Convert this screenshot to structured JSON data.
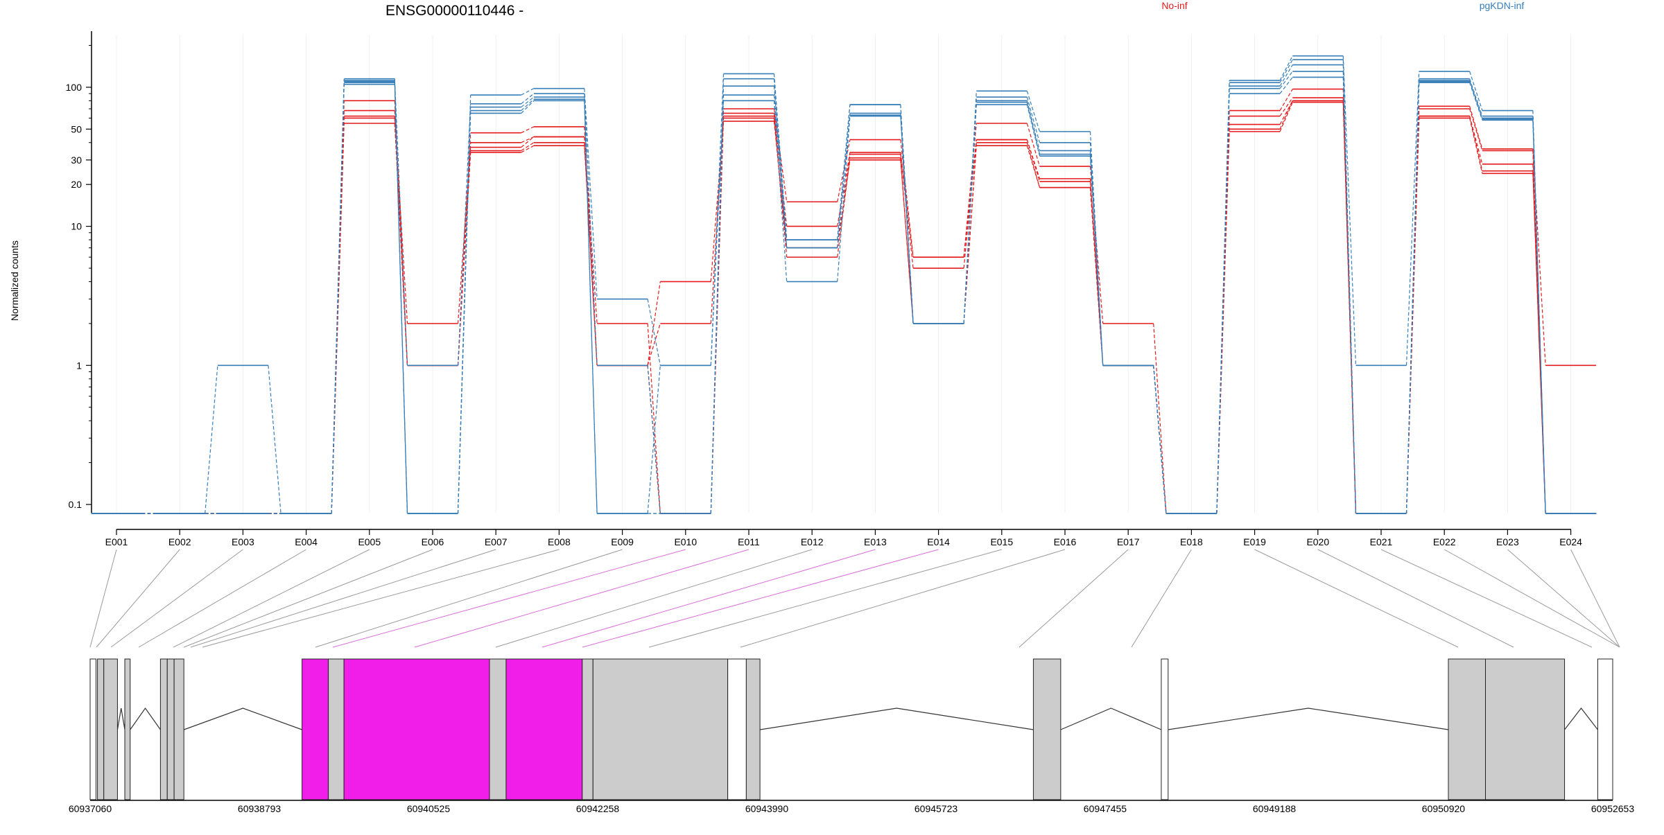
{
  "title": "ENSG00000110446 -",
  "legend": [
    {
      "label": "No-inf",
      "color": "#e41a1c"
    },
    {
      "label": "pgKDN-inf",
      "color": "#377eb8"
    }
  ],
  "ylabel": "Normalized counts",
  "colors": {
    "red": "#e41a1c",
    "blue": "#377eb8",
    "highlight": "#f01ee8",
    "exon_fill": "#cccccc",
    "line": "#777777"
  },
  "chart_data": {
    "type": "line",
    "title": "ENSG00000110446 -",
    "ylabel": "Normalized counts",
    "y_scale": "log",
    "y_ticks": [
      0.1,
      1,
      10,
      20,
      30,
      50,
      100
    ],
    "categories": [
      "E001",
      "E002",
      "E003",
      "E004",
      "E005",
      "E006",
      "E007",
      "E008",
      "E009",
      "E010",
      "E011",
      "E012",
      "E013",
      "E014",
      "E015",
      "E016",
      "E017",
      "E018",
      "E019",
      "E020",
      "E021",
      "E022",
      "E023",
      "E024"
    ],
    "series": [
      {
        "group": "No-inf",
        "values": [
          0.08,
          0.08,
          0.08,
          0.08,
          80,
          1,
          47,
          52,
          1,
          0.08,
          70,
          15,
          42,
          6,
          55,
          27,
          2,
          0.08,
          68,
          97,
          0.08,
          73,
          36,
          1
        ]
      },
      {
        "group": "No-inf",
        "values": [
          0.08,
          0.08,
          0.08,
          0.08,
          68,
          1,
          40,
          44,
          1,
          0.08,
          65,
          10,
          34,
          6,
          42,
          22,
          1,
          0.08,
          62,
          84,
          0.08,
          70,
          35,
          0.08
        ]
      },
      {
        "group": "No-inf",
        "values": [
          0.08,
          0.08,
          0.08,
          0.08,
          62,
          2,
          37,
          44,
          2,
          0.08,
          60,
          7,
          33,
          5,
          42,
          21,
          1,
          0.08,
          54,
          80,
          0.08,
          62,
          28,
          0.08
        ]
      },
      {
        "group": "No-inf",
        "values": [
          0.08,
          0.08,
          0.08,
          0.08,
          55,
          1,
          34,
          38,
          1,
          4,
          57,
          7,
          30,
          2,
          38,
          19,
          1,
          0.08,
          48,
          78,
          0.08,
          60,
          24,
          0.08
        ]
      },
      {
        "group": "No-inf",
        "values": [
          0.08,
          0.08,
          0.08,
          0.08,
          60,
          1,
          35,
          40,
          1,
          2,
          62,
          6,
          31,
          2,
          40,
          19,
          1,
          0.08,
          50,
          80,
          0.08,
          62,
          25,
          0.08
        ]
      },
      {
        "group": "pgKDN-inf",
        "values": [
          0.08,
          0.08,
          0.08,
          0.08,
          115,
          0.08,
          88,
          98,
          3,
          1,
          125,
          8,
          75,
          2,
          94,
          48,
          1,
          0.08,
          112,
          168,
          1,
          130,
          68,
          0.08
        ]
      },
      {
        "group": "pgKDN-inf",
        "values": [
          0.08,
          0.08,
          0.08,
          0.08,
          112,
          1,
          76,
          90,
          1,
          0.08,
          115,
          8,
          75,
          2,
          85,
          40,
          1,
          0.08,
          108,
          158,
          0.08,
          115,
          62,
          0.08
        ]
      },
      {
        "group": "pgKDN-inf",
        "values": [
          0.08,
          0.08,
          0.08,
          0.08,
          110,
          0.08,
          72,
          85,
          0.08,
          0.08,
          102,
          7,
          65,
          2,
          80,
          35,
          1,
          0.08,
          102,
          145,
          0.08,
          112,
          60,
          0.08
        ]
      },
      {
        "group": "pgKDN-inf",
        "values": [
          0.08,
          0.08,
          0.08,
          0.08,
          108,
          0.08,
          68,
          82,
          0.08,
          0.08,
          88,
          7,
          63,
          2,
          78,
          33,
          1,
          0.08,
          98,
          130,
          0.08,
          110,
          59,
          0.08
        ]
      },
      {
        "group": "pgKDN-inf",
        "values": [
          0.08,
          0.08,
          1,
          0.08,
          105,
          0.08,
          65,
          80,
          0.08,
          1,
          80,
          4,
          62,
          2,
          75,
          32,
          1,
          0.08,
          90,
          118,
          0.08,
          108,
          58,
          0.08
        ]
      }
    ]
  },
  "gene_model": {
    "coordinate_labels": [
      "60937060",
      "60938793",
      "60940525",
      "60942258",
      "60943990",
      "60945723",
      "60947455",
      "60949188",
      "60950920",
      "60952653"
    ],
    "genomic_range": [
      60937060,
      60952653
    ]
  }
}
